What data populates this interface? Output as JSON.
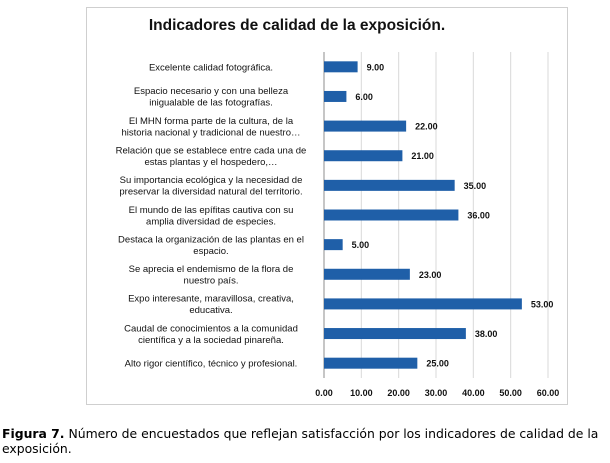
{
  "chart_data": {
    "type": "bar",
    "orientation": "horizontal",
    "title": "Indicadores de calidad de la exposición.",
    "categories": [
      [
        "Excelente calidad fotográfica."
      ],
      [
        "Espacio necesario y con una belleza",
        "inigualable de las fotografías."
      ],
      [
        "El MHN forma parte de la cultura, de la",
        "historia nacional y tradicional de nuestro…"
      ],
      [
        "Relación que se establece entre cada una de",
        "estas plantas y el hospedero,…"
      ],
      [
        "Su importancia ecológica y la necesidad de",
        "preservar la diversidad natural del territorio."
      ],
      [
        "El mundo de las epífitas cautiva con su",
        "amplia diversidad de especies."
      ],
      [
        "Destaca la organización de las plantas en el",
        "espacio."
      ],
      [
        "Se aprecia el endemismo de la flora de",
        "nuestro país."
      ],
      [
        "Expo interesante, maravillosa, creativa,",
        "educativa."
      ],
      [
        "Caudal de conocimientos a la comunidad",
        "científica y a la sociedad pinareña."
      ],
      [
        "Alto rigor científico, técnico y profesional."
      ]
    ],
    "values": [
      9,
      6,
      22,
      21,
      35,
      36,
      5,
      23,
      53,
      38,
      25
    ],
    "data_labels": [
      "9.00",
      "6.00",
      "22.00",
      "21.00",
      "35.00",
      "36.00",
      "5.00",
      "23.00",
      "53.00",
      "38.00",
      "25.00"
    ],
    "xlim": [
      0,
      60
    ],
    "x_ticks": [
      "0.00",
      "10.00",
      "20.00",
      "30.00",
      "40.00",
      "50.00",
      "60.00"
    ],
    "grid": "vertical",
    "legend": "none",
    "colors": {
      "bar": "#1f5fa8",
      "grid": "#d9d9d9",
      "axis": "#8c8c8c",
      "text": "#111111"
    }
  },
  "caption": {
    "label": "Figura 7.",
    "text": "Número de encuestados que reflejan satisfacción por los indicadores de calidad de la exposición."
  }
}
